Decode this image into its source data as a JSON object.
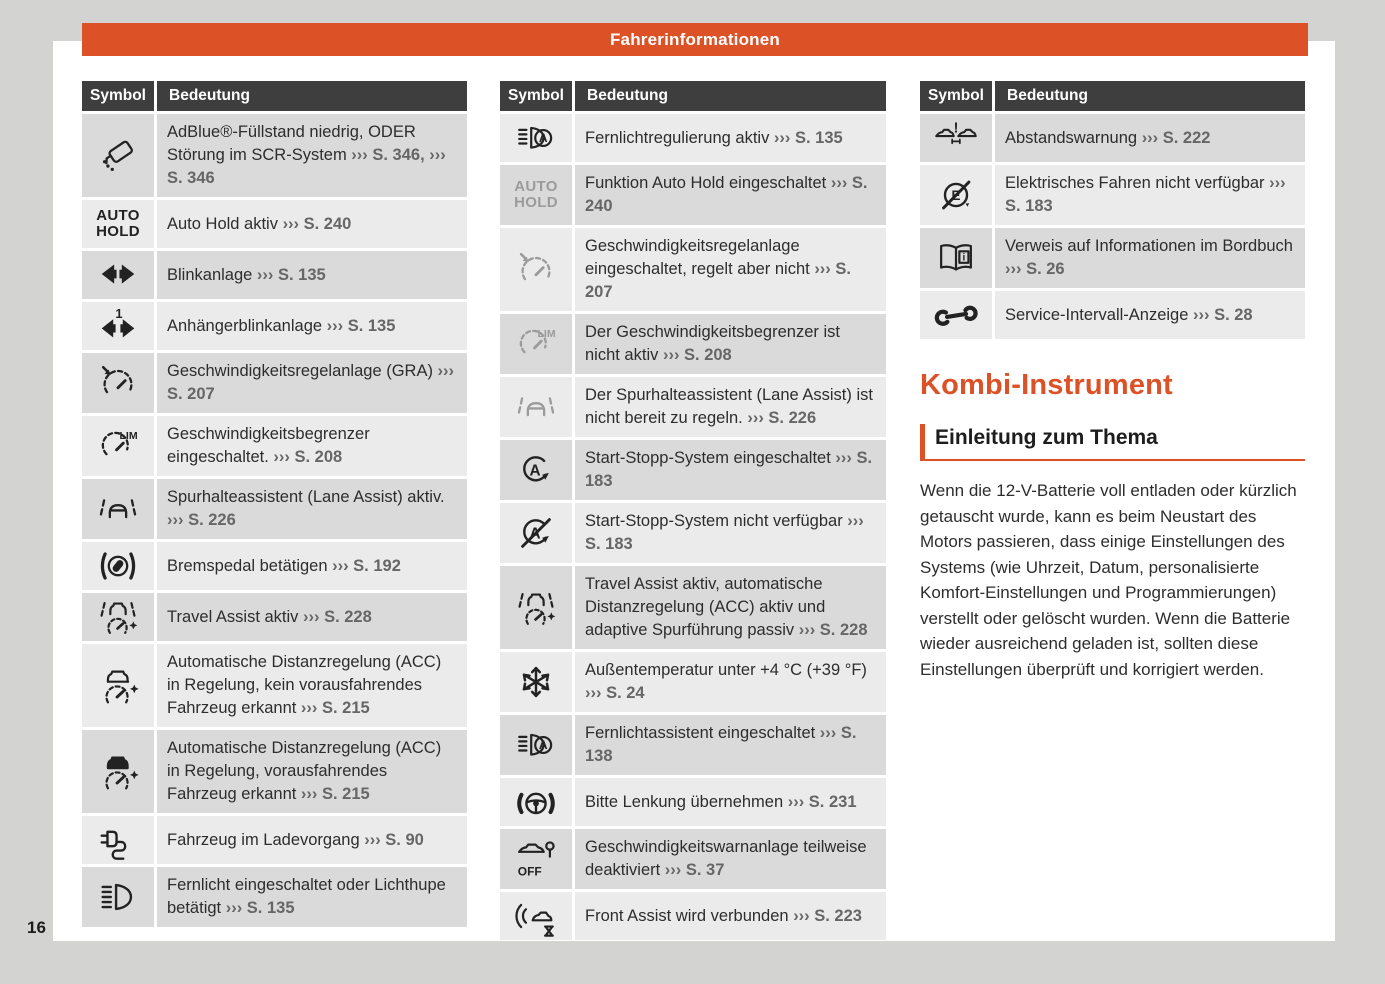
{
  "page": {
    "header": "Fahrerinformationen",
    "number": "16"
  },
  "colors": {
    "accent_orange": "#dc5226",
    "table_header_bg": "#3e3e3e",
    "row_dark": "#dadada",
    "row_light": "#ebebeb",
    "body_text": "#2d2d2d",
    "ref_text": "#666666",
    "inactive_icon_gray": "#9b9b9b"
  },
  "table_header": {
    "symbol": "Symbol",
    "meaning": "Bedeutung"
  },
  "tables": [
    {
      "rows": [
        {
          "icon": "adblue-warning-icon",
          "segments": [
            {
              "t": "AdBlue®-Füllstand niedrig, ODER Störung im SCR-System ",
              "r": false
            },
            {
              "t": "››› S. 346,",
              "r": true
            },
            {
              "t": " ",
              "r": false
            },
            {
              "t": "››› S. 346",
              "r": true
            }
          ]
        },
        {
          "icon": "auto-hold-active-indicator",
          "icon_label": "AUTO\nHOLD",
          "segments": [
            {
              "t": "Auto Hold aktiv ",
              "r": false
            },
            {
              "t": "››› S. 240",
              "r": true
            }
          ]
        },
        {
          "icon": "turn-signal-icon",
          "segments": [
            {
              "t": "Blinkanlage ",
              "r": false
            },
            {
              "t": "››› S. 135",
              "r": true
            }
          ]
        },
        {
          "icon": "trailer-turn-signal-icon",
          "segments": [
            {
              "t": "Anhängerblinkanlage ",
              "r": false
            },
            {
              "t": "››› S. 135",
              "r": true
            }
          ]
        },
        {
          "icon": "cruise-control-icon",
          "segments": [
            {
              "t": "Geschwindigkeitsregelanlage (GRA) ",
              "r": false
            },
            {
              "t": "››› S. 207",
              "r": true
            }
          ]
        },
        {
          "icon": "speed-limiter-icon",
          "segments": [
            {
              "t": "Geschwindigkeitsbegrenzer eingeschaltet. ",
              "r": false
            },
            {
              "t": "››› S. 208",
              "r": true
            }
          ]
        },
        {
          "icon": "lane-assist-icon",
          "segments": [
            {
              "t": "Spurhalteassistent (Lane Assist) aktiv. ",
              "r": false
            },
            {
              "t": "››› S. 226",
              "r": true
            }
          ]
        },
        {
          "icon": "brake-pedal-icon",
          "segments": [
            {
              "t": "Bremspedal betätigen ",
              "r": false
            },
            {
              "t": "››› S. 192",
              "r": true
            }
          ]
        },
        {
          "icon": "travel-assist-icon",
          "segments": [
            {
              "t": "Travel Assist aktiv ",
              "r": false
            },
            {
              "t": "››› S. 228",
              "r": true
            }
          ]
        },
        {
          "icon": "acc-no-vehicle-icon",
          "segments": [
            {
              "t": "Automatische Distanzregelung (ACC) in Regelung, kein vorausfahrendes Fahrzeug erkannt ",
              "r": false
            },
            {
              "t": "››› S. 215",
              "r": true
            }
          ]
        },
        {
          "icon": "acc-vehicle-detected-icon",
          "segments": [
            {
              "t": "Automatische Distanzregelung (ACC) in Regelung, vorausfahrendes Fahrzeug erkannt ",
              "r": false
            },
            {
              "t": "››› S. 215",
              "r": true
            }
          ]
        },
        {
          "icon": "charging-icon",
          "segments": [
            {
              "t": "Fahrzeug im Ladevorgang ",
              "r": false
            },
            {
              "t": "››› S. 90",
              "r": true
            }
          ]
        },
        {
          "icon": "high-beam-icon",
          "segments": [
            {
              "t": "Fernlicht eingeschaltet oder Lichthupe betätigt ",
              "r": false
            },
            {
              "t": "››› S. 135",
              "r": true
            }
          ]
        }
      ]
    },
    {
      "rows": [
        {
          "icon": "high-beam-regulation-icon",
          "segments": [
            {
              "t": "Fernlichtregulierung aktiv ",
              "r": false
            },
            {
              "t": "››› S. 135",
              "r": true
            }
          ]
        },
        {
          "icon": "auto-hold-on-indicator",
          "icon_label": "AUTO\nHOLD",
          "segments": [
            {
              "t": "Funktion Auto Hold eingeschaltet ",
              "r": false
            },
            {
              "t": "››› S. 240",
              "r": true
            }
          ]
        },
        {
          "icon": "cruise-control-standby-icon",
          "segments": [
            {
              "t": "Geschwindigkeitsregelanlage eingeschaltet, regelt aber nicht ",
              "r": false
            },
            {
              "t": "››› S. 207",
              "r": true
            }
          ]
        },
        {
          "icon": "speed-limiter-inactive-icon",
          "segments": [
            {
              "t": "Der Geschwindigkeitsbegrenzer ist nicht aktiv ",
              "r": false
            },
            {
              "t": "››› S. 208",
              "r": true
            }
          ]
        },
        {
          "icon": "lane-assist-not-ready-icon",
          "segments": [
            {
              "t": "Der Spurhalteassistent (Lane Assist) ist nicht bereit zu regeln. ",
              "r": false
            },
            {
              "t": "››› S. 226",
              "r": true
            }
          ]
        },
        {
          "icon": "start-stop-active-icon",
          "segments": [
            {
              "t": "Start-Stopp-System eingeschaltet ",
              "r": false
            },
            {
              "t": "››› S. 183",
              "r": true
            }
          ]
        },
        {
          "icon": "start-stop-unavailable-icon",
          "segments": [
            {
              "t": "Start-Stopp-System nicht verfügbar ",
              "r": false
            },
            {
              "t": "››› S. 183",
              "r": true
            }
          ]
        },
        {
          "icon": "travel-assist-passive-icon",
          "segments": [
            {
              "t": "Travel Assist aktiv, automatische Distanzregelung (ACC) aktiv und adaptive Spurführung passiv ",
              "r": false
            },
            {
              "t": "››› S. 228",
              "r": true
            }
          ]
        },
        {
          "icon": "low-temperature-icon",
          "segments": [
            {
              "t": "Außentemperatur unter +4 °C (+39 °F) ",
              "r": false
            },
            {
              "t": "››› S. 24",
              "r": true
            }
          ]
        },
        {
          "icon": "high-beam-assist-icon",
          "segments": [
            {
              "t": "Fernlichtassistent eingeschaltet ",
              "r": false
            },
            {
              "t": "››› S. 138",
              "r": true
            }
          ]
        },
        {
          "icon": "steering-takeover-icon",
          "segments": [
            {
              "t": "Bitte Lenkung übernehmen ",
              "r": false
            },
            {
              "t": "››› S. 231",
              "r": true
            }
          ]
        },
        {
          "icon": "speed-warning-off-icon",
          "segments": [
            {
              "t": "Geschwindigkeitswarnanlage teilweise deaktiviert ",
              "r": false
            },
            {
              "t": "››› S. 37",
              "r": true
            }
          ]
        },
        {
          "icon": "front-assist-connecting-icon",
          "segments": [
            {
              "t": "Front Assist wird verbunden ",
              "r": false
            },
            {
              "t": "››› S. 223",
              "r": true
            }
          ]
        }
      ]
    },
    {
      "rows": [
        {
          "icon": "distance-warning-icon",
          "segments": [
            {
              "t": "Abstandswarnung ",
              "r": false
            },
            {
              "t": "››› S. 222",
              "r": true
            }
          ]
        },
        {
          "icon": "e-drive-unavailable-icon",
          "segments": [
            {
              "t": "Elektrisches Fahren nicht verfügbar ",
              "r": false
            },
            {
              "t": "››› S. 183",
              "r": true
            }
          ]
        },
        {
          "icon": "handbook-info-icon",
          "segments": [
            {
              "t": "Verweis auf Informationen im Bordbuch ",
              "r": false
            },
            {
              "t": "››› S. 26",
              "r": true
            }
          ]
        },
        {
          "icon": "service-interval-icon",
          "segments": [
            {
              "t": "Service-Intervall-Anzeige ",
              "r": false
            },
            {
              "t": "››› S. 28",
              "r": true
            }
          ]
        }
      ]
    }
  ],
  "section": {
    "title": "Kombi-Instrument",
    "subtitle": "Einleitung zum Thema",
    "paragraph": "Wenn die 12-V-Batterie voll entladen oder kürzlich getauscht wurde, kann es beim Neustart des Motors passieren, dass einige Einstellungen des Systems (wie Uhrzeit, Datum, personalisierte Komfort-Einstellungen und Programmierungen) verstellt oder gelöscht wurden. Wenn die Batterie wieder ausreichend geladen ist, sollten diese Einstellungen überprüft und korrigiert werden."
  }
}
